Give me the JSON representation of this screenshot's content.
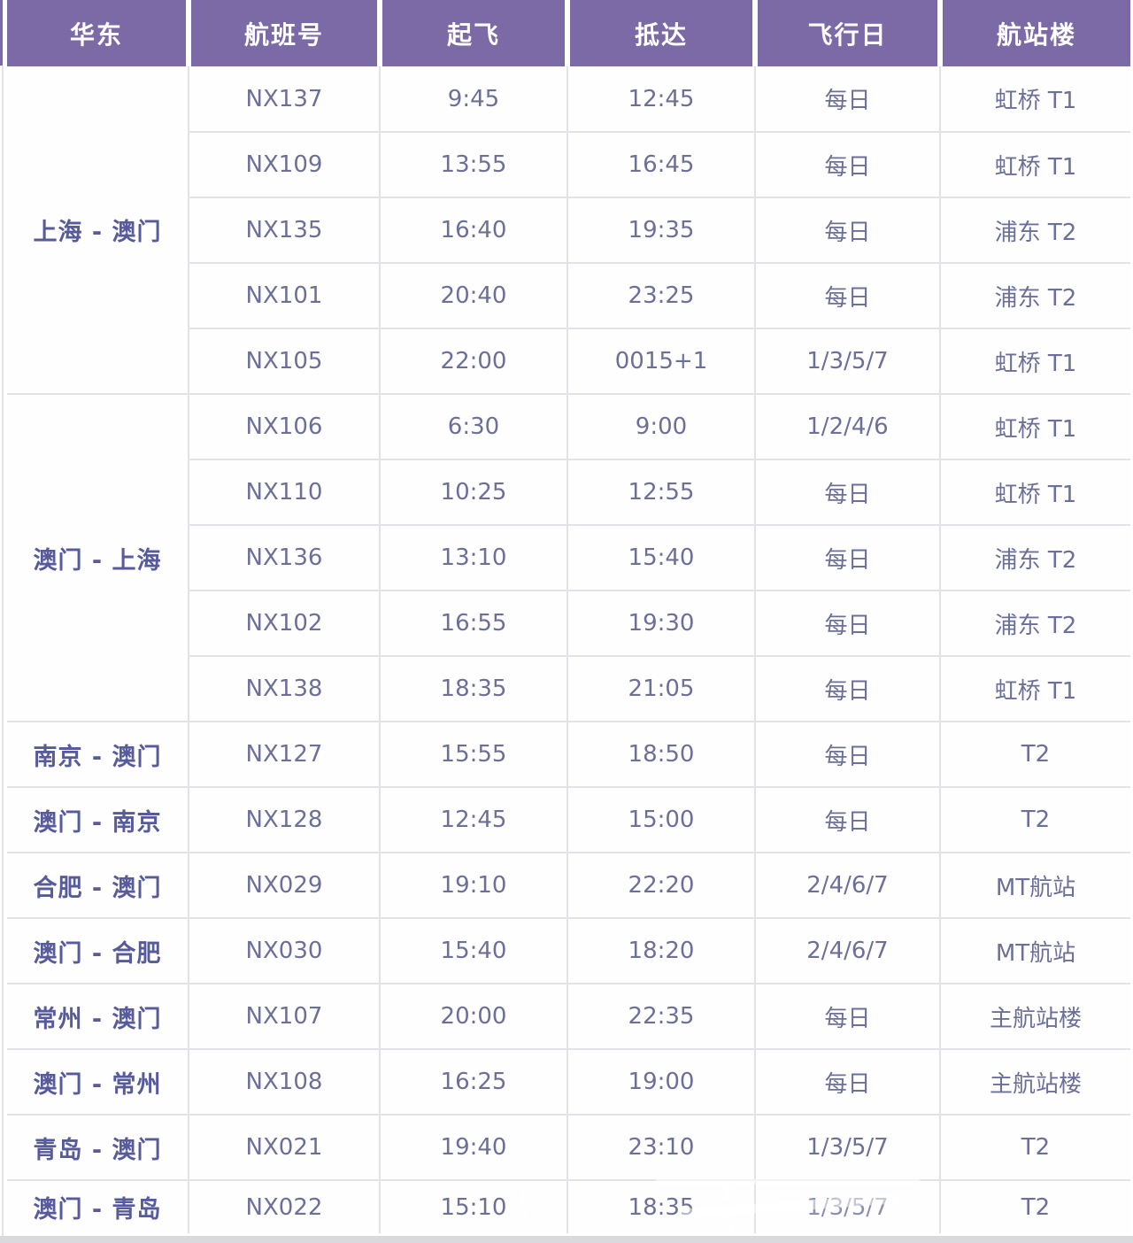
{
  "table": {
    "region_header": "华东",
    "columns": [
      "航班号",
      "起飞",
      "抵达",
      "飞行日",
      "航站楼"
    ],
    "groups": [
      {
        "route": "上海 - 澳门",
        "flights": [
          {
            "no": "NX137",
            "dep": "9:45",
            "arr": "12:45",
            "days": "每日",
            "terminal": "虹桥 T1"
          },
          {
            "no": "NX109",
            "dep": "13:55",
            "arr": "16:45",
            "days": "每日",
            "terminal": "虹桥 T1"
          },
          {
            "no": "NX135",
            "dep": "16:40",
            "arr": "19:35",
            "days": "每日",
            "terminal": "浦东 T2"
          },
          {
            "no": "NX101",
            "dep": "20:40",
            "arr": "23:25",
            "days": "每日",
            "terminal": "浦东 T2"
          },
          {
            "no": "NX105",
            "dep": "22:00",
            "arr": "0015+1",
            "days": "1/3/5/7",
            "terminal": "虹桥 T1"
          }
        ]
      },
      {
        "route": "澳门 - 上海",
        "flights": [
          {
            "no": "NX106",
            "dep": "6:30",
            "arr": "9:00",
            "days": "1/2/4/6",
            "terminal": "虹桥 T1"
          },
          {
            "no": "NX110",
            "dep": "10:25",
            "arr": "12:55",
            "days": "每日",
            "terminal": "虹桥 T1"
          },
          {
            "no": "NX136",
            "dep": "13:10",
            "arr": "15:40",
            "days": "每日",
            "terminal": "浦东 T2"
          },
          {
            "no": "NX102",
            "dep": "16:55",
            "arr": "19:30",
            "days": "每日",
            "terminal": "浦东 T2"
          },
          {
            "no": "NX138",
            "dep": "18:35",
            "arr": "21:05",
            "days": "每日",
            "terminal": "虹桥 T1"
          }
        ]
      },
      {
        "route": "南京 - 澳门",
        "flights": [
          {
            "no": "NX127",
            "dep": "15:55",
            "arr": "18:50",
            "days": "每日",
            "terminal": "T2"
          }
        ]
      },
      {
        "route": "澳门 - 南京",
        "flights": [
          {
            "no": "NX128",
            "dep": "12:45",
            "arr": "15:00",
            "days": "每日",
            "terminal": "T2"
          }
        ]
      },
      {
        "route": "合肥 - 澳门",
        "flights": [
          {
            "no": "NX029",
            "dep": "19:10",
            "arr": "22:20",
            "days": "2/4/6/7",
            "terminal": "MT航站"
          }
        ]
      },
      {
        "route": "澳门 - 合肥",
        "flights": [
          {
            "no": "NX030",
            "dep": "15:40",
            "arr": "18:20",
            "days": "2/4/6/7",
            "terminal": "MT航站"
          }
        ]
      },
      {
        "route": "常州 - 澳门",
        "flights": [
          {
            "no": "NX107",
            "dep": "20:00",
            "arr": "22:35",
            "days": "每日",
            "terminal": "主航站楼"
          }
        ]
      },
      {
        "route": "澳门 - 常州",
        "flights": [
          {
            "no": "NX108",
            "dep": "16:25",
            "arr": "19:00",
            "days": "每日",
            "terminal": "主航站楼"
          }
        ]
      },
      {
        "route": "青岛 - 澳门",
        "flights": [
          {
            "no": "NX021",
            "dep": "19:40",
            "arr": "23:10",
            "days": "1/3/5/7",
            "terminal": "T2"
          }
        ]
      },
      {
        "route": "澳门 - 青岛",
        "flights": [
          {
            "no": "NX022",
            "dep": "15:10",
            "arr": "18:35",
            "days": "1/3/5/7",
            "terminal": "T2"
          }
        ]
      }
    ],
    "colors": {
      "header_bg": "#7c6aa7",
      "header_text": "#ffffff",
      "body_text": "#6c7099",
      "route_text": "#585b9b",
      "grid_line": "#e2e2e8",
      "bottom_bar": "#d9d9de"
    }
  }
}
